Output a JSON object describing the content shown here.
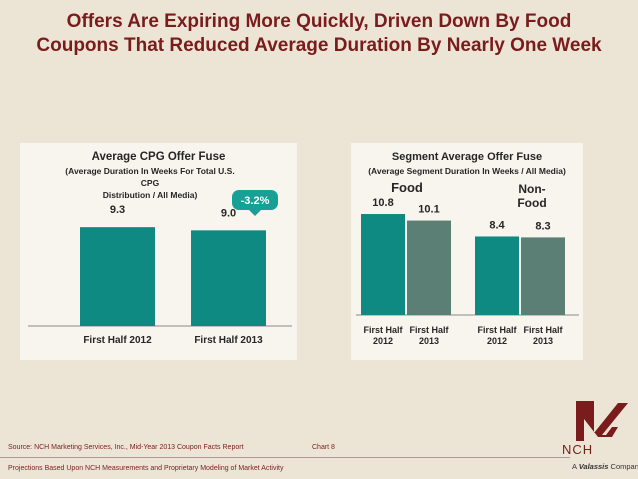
{
  "title": {
    "line1": "Offers Are Expiring More Quickly, Driven Down By Food",
    "line2": "Coupons That Reduced Average Duration By Nearly One Week"
  },
  "left_panel": {
    "title": "Average CPG Offer Fuse",
    "subtitle_line1": "(Average Duration In Weeks For Total U.S. CPG",
    "subtitle_line2": "Distribution / All Media)",
    "change_badge": "-3.2%"
  },
  "right_panel": {
    "title": "Segment Average Offer Fuse",
    "subtitle": "(Average Segment Duration In Weeks / All Media)",
    "group_food": "Food",
    "group_nonfood_line1": "Non-",
    "group_nonfood_line2": "Food"
  },
  "chart_data": [
    {
      "type": "bar",
      "title": "Average CPG Offer Fuse",
      "subtitle": "(Average Duration In Weeks For Total U.S. CPG Distribution / All Media)",
      "categories": [
        "First Half 2012",
        "First Half 2013"
      ],
      "values": [
        9.3,
        9.0
      ],
      "value_labels": [
        "9.3",
        "9.0"
      ],
      "annotation": "-3.2%",
      "ylim": [
        0,
        14
      ],
      "color": "#0e8a82"
    },
    {
      "type": "bar",
      "title": "Segment Average Offer Fuse",
      "subtitle": "(Average Segment Duration In Weeks / All Media)",
      "groups": [
        "Food",
        "Non-Food"
      ],
      "categories": [
        "First Half 2012",
        "First Half 2013"
      ],
      "category_label_lines": [
        [
          "First Half",
          "2012"
        ],
        [
          "First Half",
          "2013"
        ]
      ],
      "series": [
        {
          "name": "First Half 2012",
          "values": [
            10.8,
            8.4
          ],
          "labels": [
            "10.8",
            "8.4"
          ],
          "color": "#0e8a82"
        },
        {
          "name": "First Half 2013",
          "values": [
            10.1,
            8.3
          ],
          "labels": [
            "10.1",
            "8.3"
          ],
          "color": "#5b7f74"
        }
      ],
      "ylim": [
        0,
        14
      ]
    }
  ],
  "footer": {
    "source": "Source: NCH Marketing Services, Inc., Mid-Year 2013 Coupon Facts Report",
    "chart_number": "Chart 8",
    "projections": "Projections Based Upon NCH Measurements and Proprietary Modeling of Market Activity"
  },
  "logo": {
    "name": "NCH",
    "tagline_prefix": "A",
    "tagline_brand": "Valassis",
    "tagline_suffix": "Company",
    "color": "#7a1c1c"
  }
}
